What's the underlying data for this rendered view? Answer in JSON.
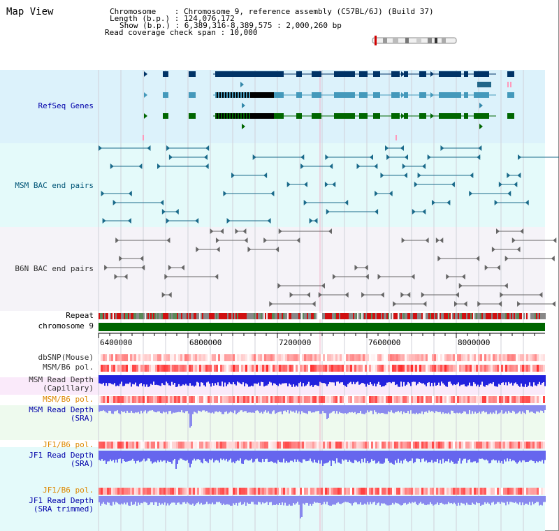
{
  "header": {
    "title": "Map View",
    "info_lines": [
      "Chromosome    : Chromosome 9, reference assembly (C57BL/6J) (Build 37)",
      "Length (b.p.) : 124,076,172",
      "Show (b.p.) : 6,389,316-8,389,575 : 2,000,260 bp",
      "Read coverage check span : 10,000"
    ]
  },
  "tracks": {
    "refseq": "RefSeq Genes",
    "msm_bac": "MSM BAC end pairs",
    "b6n_bac": "B6N BAC end pairs",
    "repeat": "Repeat",
    "chromosome": "chromosome 9",
    "dbsnp": "dbSNP(Mouse)",
    "msm_b6_pol_1": "MSM/B6 pol.",
    "msm_depth_cap_1": "MSM Read Depth",
    "msm_depth_cap_2": "(Capillary)",
    "msm_b6_pol_2": "MSM/B6 pol.",
    "msm_depth_sra_1": "MSM Read Depth",
    "msm_depth_sra_2": "(SRA)",
    "jf1_b6_pol_1": "JF1/B6 pol.",
    "jf1_depth_sra_1": "JF1 Read Depth",
    "jf1_depth_sra_2": "(SRA)",
    "jf1_b6_pol_2": "JF1/B6 pol.",
    "jf1_depth_trim_1": "JF1 Read Depth",
    "jf1_depth_trim_2": "(SRA trimmed)"
  },
  "axis": {
    "ticks": [
      "6400000",
      "6800000",
      "7200000",
      "7600000",
      "8000000"
    ]
  },
  "colors": {
    "refseq_label": "#0000aa",
    "msm_label": "#005577",
    "b6n_label": "#333333",
    "orange_label": "#dd8800",
    "blue_label": "#0000aa",
    "chromosome_bar": "#006600"
  }
}
